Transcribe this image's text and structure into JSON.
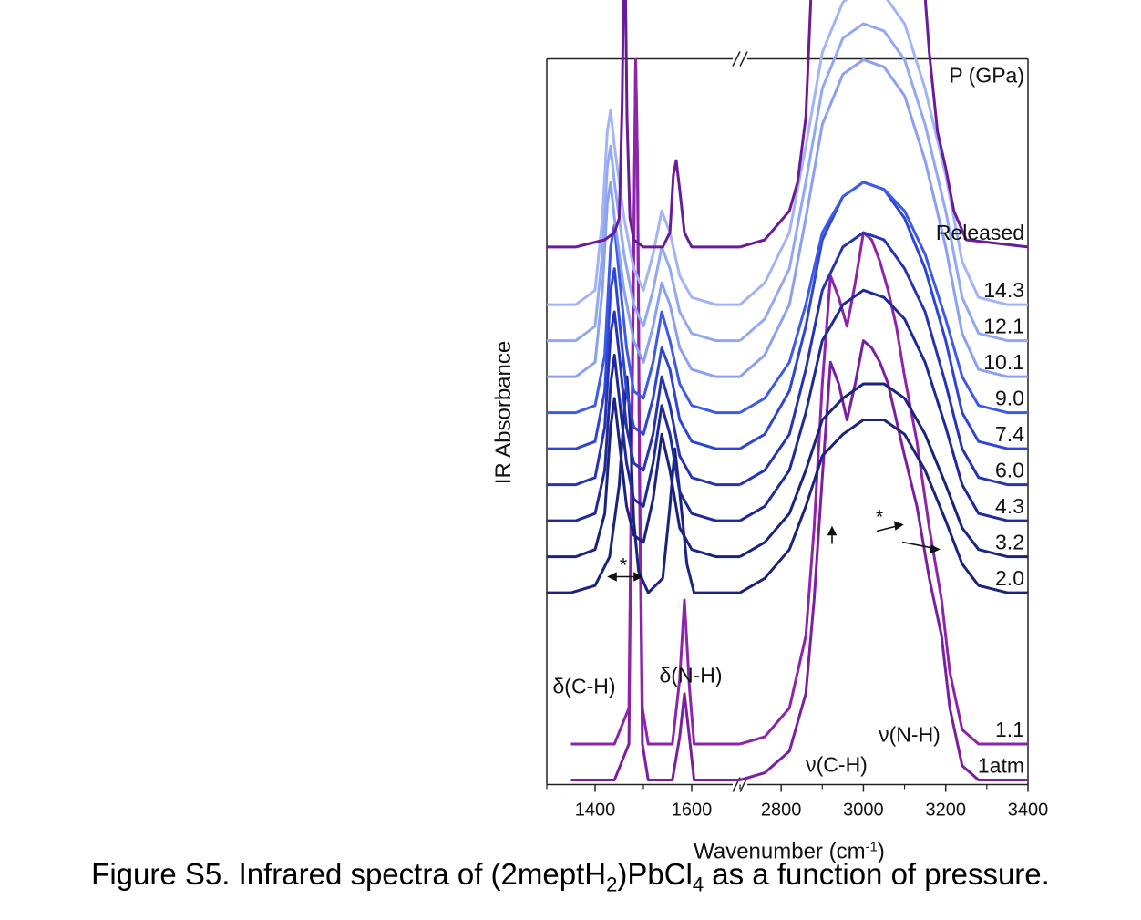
{
  "chart_data": {
    "type": "line",
    "subtype": "stacked spectra with broken x-axis",
    "xlabel": "Wavenumber (cm-1)",
    "ylabel": "IR Absorbance",
    "legend_title": "P (GPa)",
    "x_segments": [
      [
        1300,
        1700
      ],
      [
        2700,
        3400
      ]
    ],
    "xticks": [
      1400,
      1600,
      2800,
      3000,
      3200,
      3400
    ],
    "grid": false,
    "series": [
      {
        "name": "1atm",
        "color": "#7b1fa2",
        "offset": 0.0,
        "x": [
          1350,
          1440,
          1470,
          1478,
          1484,
          1488,
          1492,
          1498,
          1510,
          1560,
          1575,
          1585,
          1595,
          1605,
          1620,
          1700,
          2700,
          2760,
          2820,
          2860,
          2880,
          2900,
          2920,
          2940,
          2960,
          2980,
          3000,
          3020,
          3040,
          3060,
          3080,
          3100,
          3130,
          3160,
          3190,
          3210,
          3240,
          3280,
          3400
        ],
        "y": [
          0,
          0,
          0.05,
          0.6,
          1.0,
          0.85,
          0.4,
          0.05,
          0,
          0,
          0.06,
          0.12,
          0.06,
          0,
          0,
          0,
          0,
          0.01,
          0.04,
          0.12,
          0.25,
          0.42,
          0.58,
          0.55,
          0.5,
          0.55,
          0.61,
          0.6,
          0.58,
          0.55,
          0.5,
          0.45,
          0.38,
          0.28,
          0.2,
          0.1,
          0.02,
          0,
          0
        ]
      },
      {
        "name": "1.1",
        "color": "#8e24aa",
        "offset": 0.05,
        "x": [
          1350,
          1440,
          1470,
          1478,
          1484,
          1488,
          1492,
          1498,
          1510,
          1560,
          1575,
          1585,
          1595,
          1605,
          1620,
          1700,
          2700,
          2760,
          2820,
          2860,
          2880,
          2900,
          2920,
          2940,
          2960,
          2980,
          3000,
          3020,
          3040,
          3060,
          3080,
          3100,
          3130,
          3160,
          3190,
          3210,
          3240,
          3280,
          3400
        ],
        "y": [
          0,
          0,
          0.05,
          0.55,
          0.95,
          0.8,
          0.38,
          0.05,
          0,
          0,
          0.09,
          0.2,
          0.08,
          0,
          0,
          0,
          0,
          0.01,
          0.05,
          0.15,
          0.3,
          0.5,
          0.65,
          0.62,
          0.58,
          0.64,
          0.71,
          0.7,
          0.67,
          0.63,
          0.58,
          0.51,
          0.42,
          0.3,
          0.2,
          0.1,
          0.02,
          0,
          0
        ]
      },
      {
        "name": "2.0",
        "color": "#1a237e",
        "offset": 0.26,
        "x": [
          1300,
          1350,
          1400,
          1430,
          1450,
          1460,
          1466,
          1472,
          1480,
          1490,
          1510,
          1540,
          1555,
          1565,
          1575,
          1590,
          1605,
          1650,
          1700,
          2700,
          2760,
          2820,
          2860,
          2900,
          2950,
          3000,
          3050,
          3100,
          3150,
          3200,
          3240,
          3280,
          3350,
          3400
        ],
        "y": [
          0,
          0,
          0.01,
          0.05,
          0.15,
          0.25,
          0.3,
          0.24,
          0.1,
          0.03,
          0,
          0.02,
          0.12,
          0.2,
          0.14,
          0.04,
          0,
          0,
          0,
          0,
          0.02,
          0.06,
          0.12,
          0.19,
          0.22,
          0.24,
          0.24,
          0.22,
          0.17,
          0.1,
          0.04,
          0.01,
          0,
          0
        ]
      },
      {
        "name": "3.2",
        "color": "#1a237e",
        "offset": 0.31,
        "x": [
          1300,
          1360,
          1400,
          1420,
          1432,
          1440,
          1450,
          1465,
          1480,
          1500,
          1520,
          1538,
          1555,
          1575,
          1600,
          1650,
          1700,
          2700,
          2760,
          2820,
          2860,
          2900,
          2950,
          3000,
          3050,
          3100,
          3150,
          3200,
          3240,
          3280,
          3350,
          3400
        ],
        "y": [
          0,
          0,
          0.01,
          0.06,
          0.18,
          0.22,
          0.16,
          0.07,
          0.03,
          0.02,
          0.08,
          0.17,
          0.12,
          0.04,
          0.01,
          0,
          0,
          0,
          0.02,
          0.06,
          0.12,
          0.19,
          0.22,
          0.24,
          0.24,
          0.22,
          0.17,
          0.1,
          0.04,
          0.01,
          0,
          0
        ]
      },
      {
        "name": "4.3",
        "color": "#1e2a9a",
        "offset": 0.36,
        "x": [
          1300,
          1360,
          1400,
          1420,
          1432,
          1440,
          1450,
          1465,
          1480,
          1500,
          1520,
          1538,
          1555,
          1575,
          1600,
          1650,
          1700,
          2700,
          2760,
          2820,
          2860,
          2900,
          2950,
          3000,
          3050,
          3100,
          3150,
          3200,
          3240,
          3280,
          3350,
          3400
        ],
        "y": [
          0,
          0,
          0.01,
          0.07,
          0.19,
          0.23,
          0.17,
          0.08,
          0.03,
          0.02,
          0.08,
          0.16,
          0.12,
          0.04,
          0.01,
          0,
          0,
          0,
          0.02,
          0.07,
          0.15,
          0.25,
          0.3,
          0.32,
          0.31,
          0.28,
          0.22,
          0.13,
          0.05,
          0.01,
          0,
          0
        ]
      },
      {
        "name": "6.0",
        "color": "#2633b5",
        "offset": 0.41,
        "x": [
          1300,
          1360,
          1400,
          1420,
          1432,
          1440,
          1450,
          1465,
          1480,
          1500,
          1520,
          1538,
          1555,
          1575,
          1600,
          1650,
          1700,
          2700,
          2760,
          2820,
          2860,
          2900,
          2950,
          3000,
          3050,
          3100,
          3150,
          3200,
          3240,
          3280,
          3350,
          3400
        ],
        "y": [
          0,
          0,
          0.01,
          0.08,
          0.21,
          0.24,
          0.18,
          0.08,
          0.03,
          0.02,
          0.07,
          0.15,
          0.11,
          0.04,
          0.01,
          0,
          0,
          0,
          0.02,
          0.07,
          0.16,
          0.27,
          0.33,
          0.35,
          0.34,
          0.3,
          0.24,
          0.14,
          0.05,
          0.01,
          0,
          0
        ]
      },
      {
        "name": "7.4",
        "color": "#2f45d3",
        "offset": 0.46,
        "x": [
          1300,
          1360,
          1400,
          1420,
          1432,
          1440,
          1450,
          1465,
          1480,
          1500,
          1520,
          1538,
          1555,
          1575,
          1600,
          1650,
          1700,
          2700,
          2760,
          2820,
          2860,
          2900,
          2950,
          3000,
          3050,
          3100,
          3150,
          3200,
          3240,
          3280,
          3350,
          3400
        ],
        "y": [
          0,
          0,
          0.01,
          0.08,
          0.22,
          0.25,
          0.18,
          0.08,
          0.03,
          0.02,
          0.07,
          0.14,
          0.11,
          0.04,
          0.01,
          0,
          0,
          0,
          0.02,
          0.08,
          0.17,
          0.29,
          0.35,
          0.37,
          0.36,
          0.32,
          0.25,
          0.15,
          0.05,
          0.01,
          0,
          0
        ]
      },
      {
        "name": "9.0",
        "color": "#3d5ae8",
        "offset": 0.51,
        "x": [
          1300,
          1360,
          1400,
          1420,
          1432,
          1440,
          1450,
          1465,
          1480,
          1500,
          1520,
          1538,
          1555,
          1575,
          1600,
          1650,
          1700,
          2700,
          2760,
          2820,
          2860,
          2900,
          2950,
          3000,
          3050,
          3100,
          3150,
          3200,
          3240,
          3280,
          3350,
          3400
        ],
        "y": [
          0,
          0,
          0.01,
          0.08,
          0.23,
          0.26,
          0.19,
          0.09,
          0.03,
          0.02,
          0.07,
          0.14,
          0.1,
          0.04,
          0.01,
          0,
          0,
          0,
          0.02,
          0.07,
          0.15,
          0.25,
          0.3,
          0.32,
          0.31,
          0.28,
          0.22,
          0.13,
          0.05,
          0.01,
          0,
          0
        ]
      },
      {
        "name": "10.1",
        "color": "#8aa0f0",
        "offset": 0.56,
        "x": [
          1300,
          1360,
          1400,
          1415,
          1425,
          1432,
          1440,
          1460,
          1480,
          1500,
          1520,
          1538,
          1555,
          1575,
          1600,
          1650,
          1700,
          2700,
          2760,
          2820,
          2860,
          2900,
          2950,
          3000,
          3050,
          3100,
          3150,
          3200,
          3240,
          3280,
          3350,
          3400
        ],
        "y": [
          0,
          0,
          0.02,
          0.12,
          0.24,
          0.27,
          0.22,
          0.12,
          0.05,
          0.02,
          0.07,
          0.13,
          0.1,
          0.04,
          0.01,
          0,
          0,
          0,
          0.03,
          0.1,
          0.22,
          0.35,
          0.42,
          0.44,
          0.43,
          0.39,
          0.3,
          0.18,
          0.06,
          0.01,
          0,
          0
        ]
      },
      {
        "name": "12.1",
        "color": "#93a8f2",
        "offset": 0.61,
        "x": [
          1300,
          1360,
          1400,
          1415,
          1425,
          1432,
          1440,
          1460,
          1480,
          1500,
          1520,
          1538,
          1555,
          1575,
          1600,
          1650,
          1700,
          2700,
          2760,
          2820,
          2860,
          2900,
          2950,
          3000,
          3050,
          3100,
          3150,
          3200,
          3240,
          3280,
          3350,
          3400
        ],
        "y": [
          0,
          0,
          0.02,
          0.12,
          0.24,
          0.27,
          0.22,
          0.12,
          0.05,
          0.02,
          0.07,
          0.13,
          0.1,
          0.04,
          0.01,
          0,
          0,
          0,
          0.03,
          0.1,
          0.22,
          0.35,
          0.42,
          0.44,
          0.43,
          0.39,
          0.3,
          0.18,
          0.06,
          0.01,
          0,
          0
        ]
      },
      {
        "name": "14.3",
        "color": "#a3b4f4",
        "offset": 0.66,
        "x": [
          1300,
          1360,
          1400,
          1415,
          1425,
          1432,
          1440,
          1460,
          1480,
          1500,
          1520,
          1538,
          1555,
          1575,
          1600,
          1650,
          1700,
          2700,
          2760,
          2820,
          2860,
          2900,
          2950,
          3000,
          3050,
          3100,
          3150,
          3200,
          3240,
          3280,
          3350,
          3400
        ],
        "y": [
          0,
          0,
          0.02,
          0.12,
          0.24,
          0.27,
          0.22,
          0.12,
          0.05,
          0.02,
          0.07,
          0.13,
          0.1,
          0.04,
          0.01,
          0,
          0,
          0,
          0.03,
          0.1,
          0.22,
          0.35,
          0.42,
          0.44,
          0.43,
          0.39,
          0.3,
          0.18,
          0.06,
          0.01,
          0,
          0
        ]
      },
      {
        "name": "Released",
        "color": "#6a1b9a",
        "offset": 0.74,
        "x": [
          1300,
          1360,
          1420,
          1440,
          1450,
          1456,
          1461,
          1466,
          1472,
          1480,
          1500,
          1540,
          1555,
          1562,
          1568,
          1575,
          1585,
          1600,
          1700,
          2700,
          2760,
          2820,
          2840,
          2860,
          2880,
          2890,
          2900,
          2920,
          2940,
          2960,
          2980,
          3000,
          3020,
          3040,
          3060,
          3080,
          3100,
          3130,
          3160,
          3180,
          3200,
          3220,
          3250,
          3400
        ],
        "y": [
          0,
          0,
          0.01,
          0.02,
          0.04,
          0.2,
          0.47,
          0.18,
          0.04,
          0.01,
          0,
          0,
          0.02,
          0.1,
          0.12,
          0.08,
          0.02,
          0,
          0,
          0,
          0.01,
          0.05,
          0.09,
          0.18,
          0.45,
          0.6,
          0.63,
          0.58,
          0.63,
          0.72,
          0.74,
          0.72,
          0.74,
          0.72,
          0.7,
          0.68,
          0.62,
          0.5,
          0.27,
          0.16,
          0.11,
          0.05,
          0.01,
          0
        ]
      }
    ],
    "annotations": [
      "δ(C-H)",
      "δ(N-H)",
      "ν(C-H)",
      "ν(N-H)",
      "*",
      "*"
    ]
  },
  "caption": {
    "prefix": "Figure S5. Infrared spectra of (2meptH",
    "sub1": "2",
    "mid": ")PbCl",
    "sub2": "4",
    "suffix": " as a function of pressure."
  }
}
